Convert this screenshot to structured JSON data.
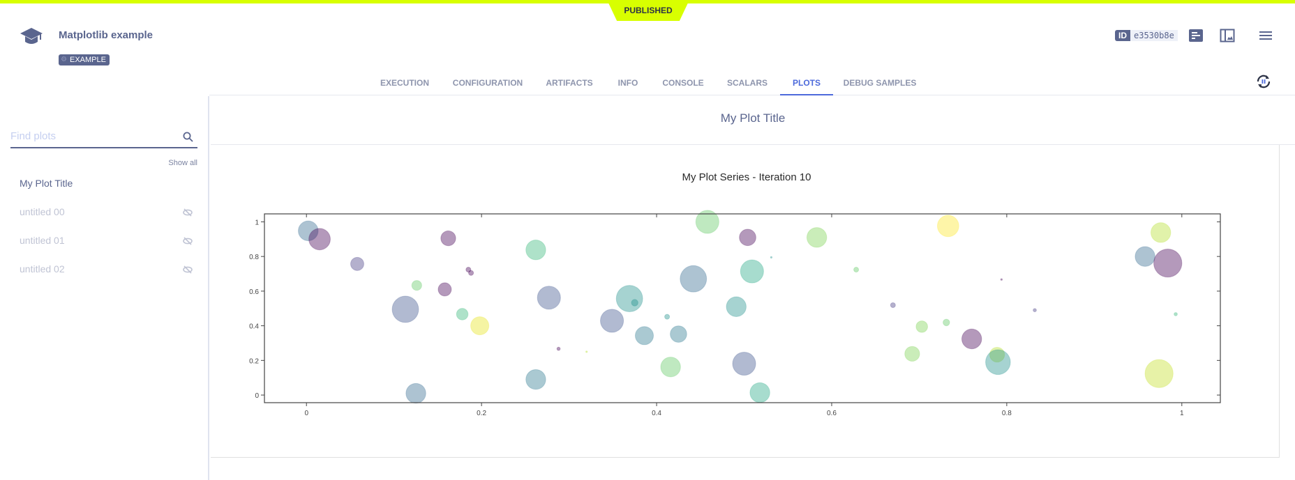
{
  "header": {
    "status": "PUBLISHED",
    "title": "Matplotlib example",
    "tag": "EXAMPLE",
    "id_label": "ID",
    "id_value": "e3530b8e",
    "icons": [
      "graduation-cap-icon",
      "details-icon",
      "layout-icon",
      "menu-icon",
      "auto-refresh-pause-icon"
    ]
  },
  "tabs": [
    {
      "label": "EXECUTION"
    },
    {
      "label": "CONFIGURATION"
    },
    {
      "label": "ARTIFACTS"
    },
    {
      "label": "INFO"
    },
    {
      "label": "CONSOLE"
    },
    {
      "label": "SCALARS"
    },
    {
      "label": "PLOTS",
      "active": true
    },
    {
      "label": "DEBUG SAMPLES"
    }
  ],
  "sidebar": {
    "search_placeholder": "Find plots",
    "show_all": "Show all",
    "items": [
      {
        "label": "My Plot Title",
        "hidden": false
      },
      {
        "label": "untitled 00",
        "hidden": true
      },
      {
        "label": "untitled 01",
        "hidden": true
      },
      {
        "label": "untitled 02",
        "hidden": true
      }
    ]
  },
  "main": {
    "plot_group_title": "My Plot Title"
  },
  "colors": {
    "accent": "#4d6adb",
    "published": "#d8ff00",
    "primary": "#5a658e"
  },
  "chart_data": {
    "type": "scatter",
    "title": "My Plot Series - Iteration 10",
    "xlabel": "",
    "ylabel": "",
    "xlim": [
      -0.048,
      1.044
    ],
    "ylim": [
      -0.044,
      1.046
    ],
    "xticks": [
      0,
      0.2,
      0.4,
      0.6,
      0.8,
      1
    ],
    "yticks": [
      0,
      0.2,
      0.4,
      0.6,
      0.8,
      1
    ],
    "xtick_labels": [
      "0",
      "0.2",
      "0.4",
      "0.6",
      "0.8",
      "1"
    ],
    "ytick_labels": [
      "0",
      "0.2",
      "0.4",
      "0.6",
      "0.8",
      "1"
    ],
    "grid": false,
    "opacity": 0.4,
    "points": [
      {
        "x": 0.002,
        "y": 0.948,
        "size": 12,
        "color": "#31688e"
      },
      {
        "x": 0.015,
        "y": 0.9,
        "size": 13,
        "color": "#440154"
      },
      {
        "x": 0.058,
        "y": 0.757,
        "size": 8,
        "color": "#443983"
      },
      {
        "x": 0.162,
        "y": 0.905,
        "size": 9,
        "color": "#440154"
      },
      {
        "x": 0.185,
        "y": 0.724,
        "size": 3,
        "color": "#440154"
      },
      {
        "x": 0.188,
        "y": 0.705,
        "size": 3,
        "color": "#440154"
      },
      {
        "x": 0.126,
        "y": 0.633,
        "size": 6,
        "color": "#5ec962"
      },
      {
        "x": 0.158,
        "y": 0.61,
        "size": 8,
        "color": "#440154"
      },
      {
        "x": 0.113,
        "y": 0.495,
        "size": 16,
        "color": "#3b528b"
      },
      {
        "x": 0.178,
        "y": 0.467,
        "size": 7,
        "color": "#35b779"
      },
      {
        "x": 0.198,
        "y": 0.4,
        "size": 11,
        "color": "#e5e419"
      },
      {
        "x": 0.262,
        "y": 0.838,
        "size": 12,
        "color": "#35b779"
      },
      {
        "x": 0.277,
        "y": 0.562,
        "size": 14,
        "color": "#3b528b"
      },
      {
        "x": 0.125,
        "y": 0.01,
        "size": 12,
        "color": "#31688e"
      },
      {
        "x": 0.262,
        "y": 0.09,
        "size": 12,
        "color": "#2a788e"
      },
      {
        "x": 0.288,
        "y": 0.267,
        "size": 2,
        "color": "#440154"
      },
      {
        "x": 0.32,
        "y": 0.25,
        "size": 1,
        "color": "#b5de2b"
      },
      {
        "x": 0.349,
        "y": 0.429,
        "size": 14,
        "color": "#3b528b"
      },
      {
        "x": 0.369,
        "y": 0.557,
        "size": 16,
        "color": "#21918c"
      },
      {
        "x": 0.375,
        "y": 0.533,
        "size": 4,
        "color": "#21918c"
      },
      {
        "x": 0.386,
        "y": 0.343,
        "size": 11,
        "color": "#2a788e"
      },
      {
        "x": 0.412,
        "y": 0.452,
        "size": 3,
        "color": "#21918c"
      },
      {
        "x": 0.425,
        "y": 0.352,
        "size": 10,
        "color": "#2a788e"
      },
      {
        "x": 0.416,
        "y": 0.162,
        "size": 12,
        "color": "#5ec962"
      },
      {
        "x": 0.442,
        "y": 0.671,
        "size": 16,
        "color": "#31688e"
      },
      {
        "x": 0.458,
        "y": 1.0,
        "size": 14,
        "color": "#5ec962"
      },
      {
        "x": 0.504,
        "y": 0.91,
        "size": 10,
        "color": "#440154"
      },
      {
        "x": 0.509,
        "y": 0.714,
        "size": 14,
        "color": "#22a884"
      },
      {
        "x": 0.491,
        "y": 0.51,
        "size": 12,
        "color": "#21918c"
      },
      {
        "x": 0.531,
        "y": 0.795,
        "size": 1,
        "color": "#21918c"
      },
      {
        "x": 0.5,
        "y": 0.181,
        "size": 14,
        "color": "#3b528b"
      },
      {
        "x": 0.518,
        "y": 0.014,
        "size": 12,
        "color": "#22a884"
      },
      {
        "x": 0.583,
        "y": 0.91,
        "size": 12,
        "color": "#7ad151"
      },
      {
        "x": 0.628,
        "y": 0.724,
        "size": 3,
        "color": "#5ec962"
      },
      {
        "x": 0.67,
        "y": 0.519,
        "size": 3,
        "color": "#443983"
      },
      {
        "x": 0.703,
        "y": 0.395,
        "size": 7,
        "color": "#7ad151"
      },
      {
        "x": 0.731,
        "y": 0.419,
        "size": 4,
        "color": "#5ec962"
      },
      {
        "x": 0.733,
        "y": 0.976,
        "size": 13,
        "color": "#fde725"
      },
      {
        "x": 0.692,
        "y": 0.238,
        "size": 9,
        "color": "#7ad151"
      },
      {
        "x": 0.76,
        "y": 0.324,
        "size": 12,
        "color": "#440154"
      },
      {
        "x": 0.789,
        "y": 0.233,
        "size": 9,
        "color": "#b5de2b"
      },
      {
        "x": 0.79,
        "y": 0.19,
        "size": 15,
        "color": "#21918c"
      },
      {
        "x": 0.794,
        "y": 0.667,
        "size": 1,
        "color": "#440154"
      },
      {
        "x": 0.832,
        "y": 0.49,
        "size": 2,
        "color": "#443983"
      },
      {
        "x": 0.958,
        "y": 0.8,
        "size": 12,
        "color": "#31688e"
      },
      {
        "x": 0.984,
        "y": 0.762,
        "size": 17,
        "color": "#440154"
      },
      {
        "x": 0.976,
        "y": 0.938,
        "size": 12,
        "color": "#b5de2b"
      },
      {
        "x": 0.974,
        "y": 0.124,
        "size": 17,
        "color": "#c2df23"
      },
      {
        "x": 0.993,
        "y": 0.467,
        "size": 2,
        "color": "#35b779"
      }
    ]
  }
}
